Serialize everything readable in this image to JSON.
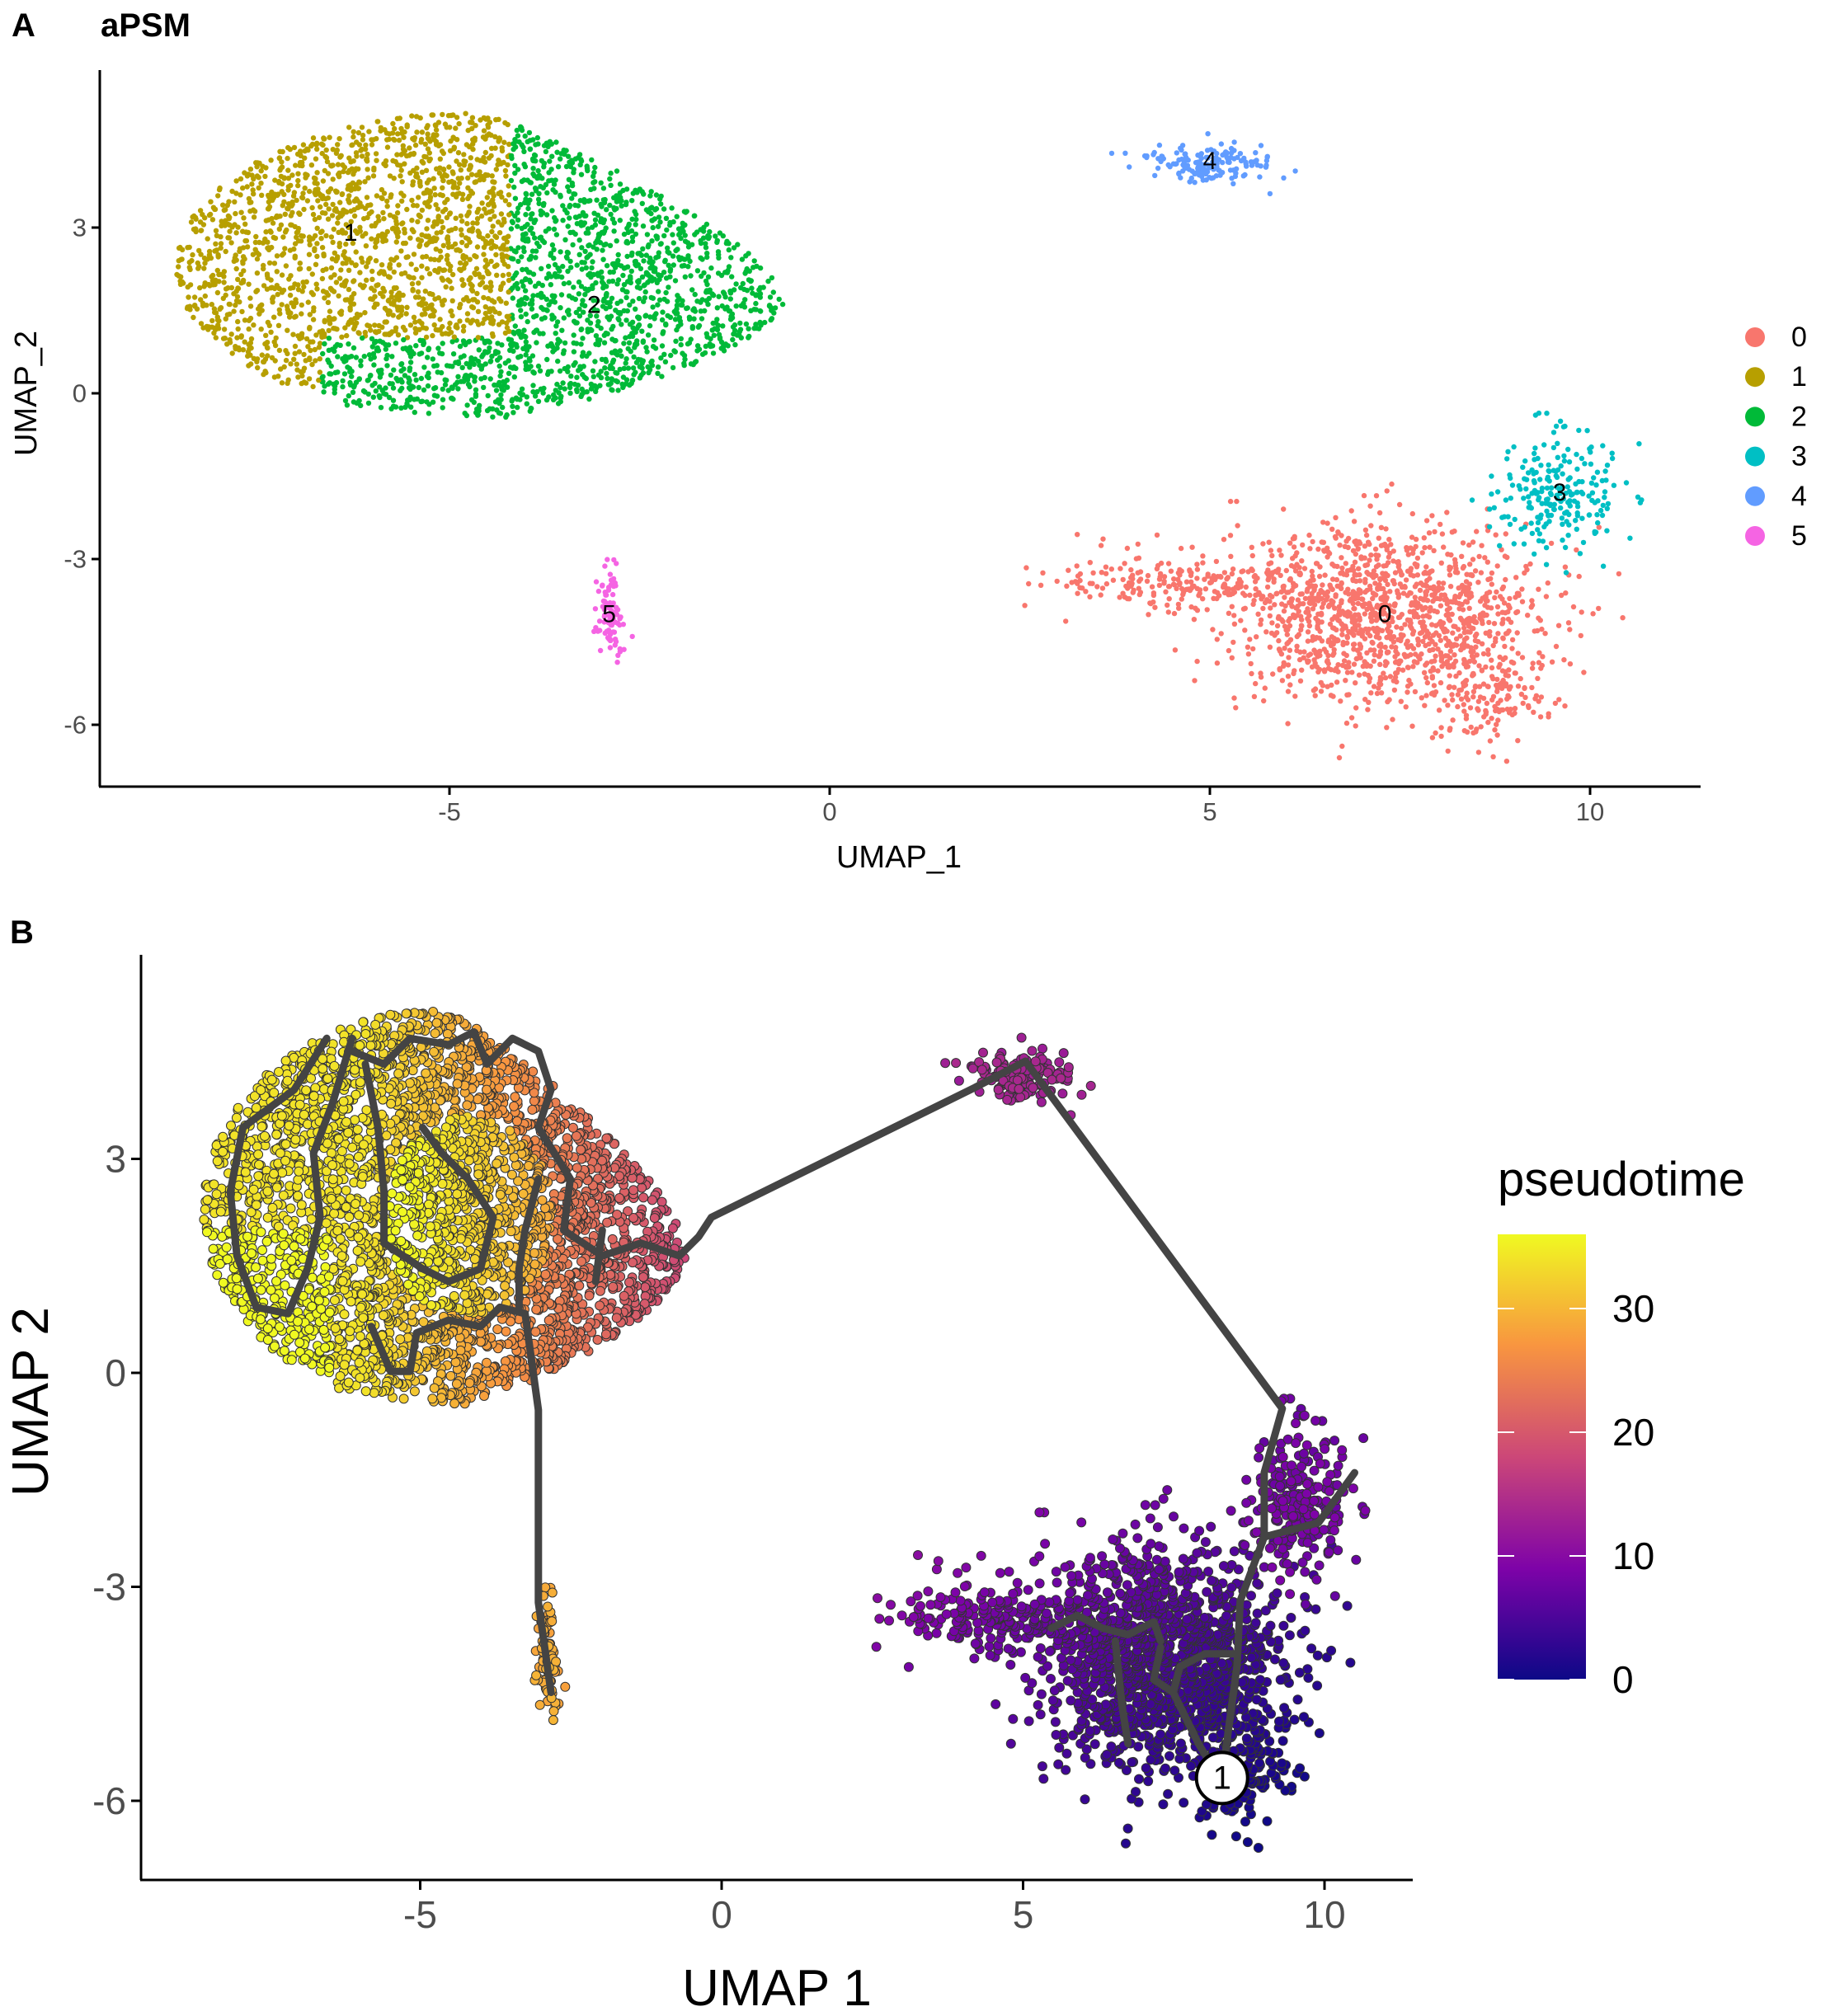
{
  "chart_data": [
    {
      "panel": "A",
      "type": "scatter",
      "title": "aPSM",
      "xlabel": "UMAP_1",
      "ylabel": "UMAP_2",
      "xlim": [
        -9.8,
        11.5
      ],
      "ylim": [
        -7,
        5.8
      ],
      "xticks": [
        -5,
        0,
        5,
        10
      ],
      "yticks": [
        3,
        0,
        -3,
        -6
      ],
      "grid": false,
      "legend": {
        "placement": "right",
        "entries": [
          "0",
          "1",
          "2",
          "3",
          "4",
          "5"
        ]
      },
      "cluster_colors": {
        "0": "#F8766D",
        "1": "#B79F00",
        "2": "#00BA38",
        "3": "#00BFC4",
        "4": "#619CFF",
        "5": "#F564E3"
      },
      "cluster_labels": [
        {
          "label": "0",
          "x": 7.3,
          "y": -4.0
        },
        {
          "label": "1",
          "x": -6.3,
          "y": 2.9
        },
        {
          "label": "2",
          "x": -3.1,
          "y": 1.6
        },
        {
          "label": "3",
          "x": 9.6,
          "y": -1.8
        },
        {
          "label": "4",
          "x": 5.0,
          "y": 4.2
        },
        {
          "label": "5",
          "x": -2.9,
          "y": -4.0
        }
      ],
      "point_groups": [
        {
          "cluster": "main-blob",
          "cx": -4.6,
          "cy": 2.3,
          "rx": 4.0,
          "ry": 2.8,
          "n": 3300
        },
        {
          "cluster": "0",
          "cx": 7.3,
          "cy": -4.0,
          "sx": 1.0,
          "sy": 0.8,
          "n": 1300
        },
        {
          "cluster": "0",
          "cx": 4.6,
          "cy": -3.4,
          "sx": 0.9,
          "sy": 0.3,
          "n": 220
        },
        {
          "cluster": "0",
          "cx": 8.7,
          "cy": -5.6,
          "sx": 0.35,
          "sy": 0.45,
          "n": 130
        },
        {
          "cluster": "3",
          "cx": 9.6,
          "cy": -1.8,
          "sx": 0.4,
          "sy": 0.55,
          "n": 220
        },
        {
          "cluster": "4",
          "cx": 5.0,
          "cy": 4.15,
          "sx": 0.4,
          "sy": 0.17,
          "n": 160
        },
        {
          "cluster": "5",
          "cx": -2.9,
          "cy": -4.0,
          "sx": 0.1,
          "sy": 0.4,
          "n": 90
        }
      ]
    },
    {
      "panel": "B",
      "type": "scatter",
      "xlabel": "UMAP 1",
      "ylabel": "UMAP 2",
      "xlim": [
        -9.8,
        11.5
      ],
      "ylim": [
        -7,
        5.8
      ],
      "xticks": [
        -5,
        0,
        5,
        10
      ],
      "yticks": [
        3,
        0,
        -3,
        -6
      ],
      "grid": false,
      "colorbar": {
        "title": "pseudotime",
        "min": 0,
        "max": 36,
        "ticks": [
          30,
          20,
          10,
          0
        ],
        "colormap": [
          "#0d0887",
          "#7e03a8",
          "#cc4778",
          "#f89540",
          "#f0f921"
        ]
      },
      "root_node": {
        "label": "1",
        "x": 8.3,
        "y": -5.68
      },
      "trajectory": [
        [
          [
            8.3,
            -5.68
          ],
          [
            8.55,
            -4.1
          ],
          [
            8.6,
            -3.2
          ],
          [
            9.0,
            -2.3
          ],
          [
            9.0,
            -1.4
          ],
          [
            9.3,
            -0.5
          ],
          [
            5.04,
            4.37
          ],
          [
            4.2,
            4.0
          ],
          [
            -0.17,
            2.18
          ],
          [
            -0.38,
            1.91
          ],
          [
            -0.7,
            1.64
          ],
          [
            -1.34,
            1.82
          ],
          [
            -1.98,
            1.64
          ],
          [
            -2.62,
            2.0
          ],
          [
            -2.51,
            2.72
          ],
          [
            -3.04,
            3.44
          ],
          [
            -2.83,
            3.97
          ],
          [
            -3.04,
            4.51
          ],
          [
            -3.47,
            4.69
          ],
          [
            -3.89,
            4.33
          ],
          [
            -4.11,
            4.78
          ],
          [
            -4.53,
            4.6
          ],
          [
            -5.17,
            4.69
          ],
          [
            -5.6,
            4.33
          ],
          [
            -6.13,
            4.51
          ]
        ],
        [
          [
            -6.55,
            4.69
          ],
          [
            -7.09,
            3.97
          ],
          [
            -7.94,
            3.44
          ],
          [
            -8.15,
            2.54
          ],
          [
            -8.04,
            1.64
          ],
          [
            -7.72,
            0.92
          ],
          [
            -7.19,
            0.83
          ],
          [
            -6.87,
            1.46
          ],
          [
            -6.66,
            2.18
          ],
          [
            -6.77,
            3.08
          ],
          [
            -6.45,
            3.79
          ],
          [
            -6.13,
            4.69
          ]
        ],
        [
          [
            -5.91,
            4.33
          ],
          [
            -5.7,
            3.44
          ],
          [
            -5.6,
            2.54
          ],
          [
            -5.6,
            1.82
          ],
          [
            -4.96,
            1.46
          ],
          [
            -4.53,
            1.28
          ],
          [
            -4.0,
            1.46
          ],
          [
            -3.79,
            2.18
          ],
          [
            -4.21,
            2.72
          ],
          [
            -4.64,
            3.08
          ],
          [
            -4.96,
            3.44
          ]
        ],
        [
          [
            -5.81,
            0.65
          ],
          [
            -5.49,
            0.02
          ],
          [
            -5.17,
            0.02
          ],
          [
            -5.06,
            0.56
          ],
          [
            -4.53,
            0.74
          ],
          [
            -4.0,
            0.65
          ],
          [
            -3.68,
            0.92
          ],
          [
            -3.26,
            0.83
          ],
          [
            -3.04,
            -0.52
          ],
          [
            -3.04,
            -3.22
          ],
          [
            -2.83,
            -4.48
          ]
        ],
        [
          [
            -3.36,
            0.92
          ],
          [
            -3.36,
            1.46
          ],
          [
            -3.26,
            2.0
          ],
          [
            -3.04,
            2.72
          ]
        ],
        [
          [
            -2.09,
            1.28
          ],
          [
            -1.98,
            2.0
          ]
        ],
        [
          [
            10.5,
            -1.4
          ],
          [
            9.9,
            -2.1
          ],
          [
            9.0,
            -2.3
          ]
        ],
        [
          [
            5.47,
            -3.58
          ],
          [
            5.9,
            -3.4
          ],
          [
            6.32,
            -3.58
          ],
          [
            6.74,
            -3.67
          ],
          [
            7.17,
            -3.49
          ],
          [
            7.28,
            -3.76
          ]
        ],
        [
          [
            6.53,
            -3.76
          ],
          [
            6.64,
            -4.66
          ],
          [
            6.74,
            -5.2
          ]
        ],
        [
          [
            7.28,
            -3.85
          ],
          [
            7.17,
            -4.3
          ],
          [
            7.49,
            -4.48
          ],
          [
            7.91,
            -5.2
          ],
          [
            8.23,
            -5.65
          ]
        ],
        [
          [
            8.55,
            -3.94
          ],
          [
            8.02,
            -3.94
          ],
          [
            7.6,
            -4.12
          ],
          [
            7.49,
            -4.48
          ]
        ]
      ]
    }
  ],
  "panel_letters": {
    "a": "A",
    "b": "B"
  }
}
